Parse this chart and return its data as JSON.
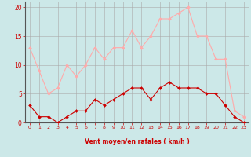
{
  "hours": [
    0,
    1,
    2,
    3,
    4,
    5,
    6,
    7,
    8,
    9,
    10,
    11,
    12,
    13,
    14,
    15,
    16,
    17,
    18,
    19,
    20,
    21,
    22,
    23
  ],
  "avg_wind": [
    3,
    1,
    1,
    0,
    1,
    2,
    2,
    4,
    3,
    4,
    5,
    6,
    6,
    4,
    6,
    7,
    6,
    6,
    6,
    5,
    5,
    3,
    1,
    0
  ],
  "gusts": [
    13,
    9,
    5,
    6,
    10,
    8,
    10,
    13,
    11,
    13,
    13,
    16,
    13,
    15,
    18,
    18,
    19,
    20,
    15,
    15,
    11,
    11,
    2,
    1
  ],
  "avg_color": "#cc0000",
  "gust_color": "#ffaaaa",
  "bg_color": "#cce8e8",
  "grid_color": "#aaaaaa",
  "xlabel": "Vent moyen/en rafales ( km/h )",
  "xlabel_color": "#cc0000",
  "tick_color": "#cc0000",
  "ylim": [
    0,
    21
  ],
  "yticks": [
    0,
    5,
    10,
    15,
    20
  ]
}
